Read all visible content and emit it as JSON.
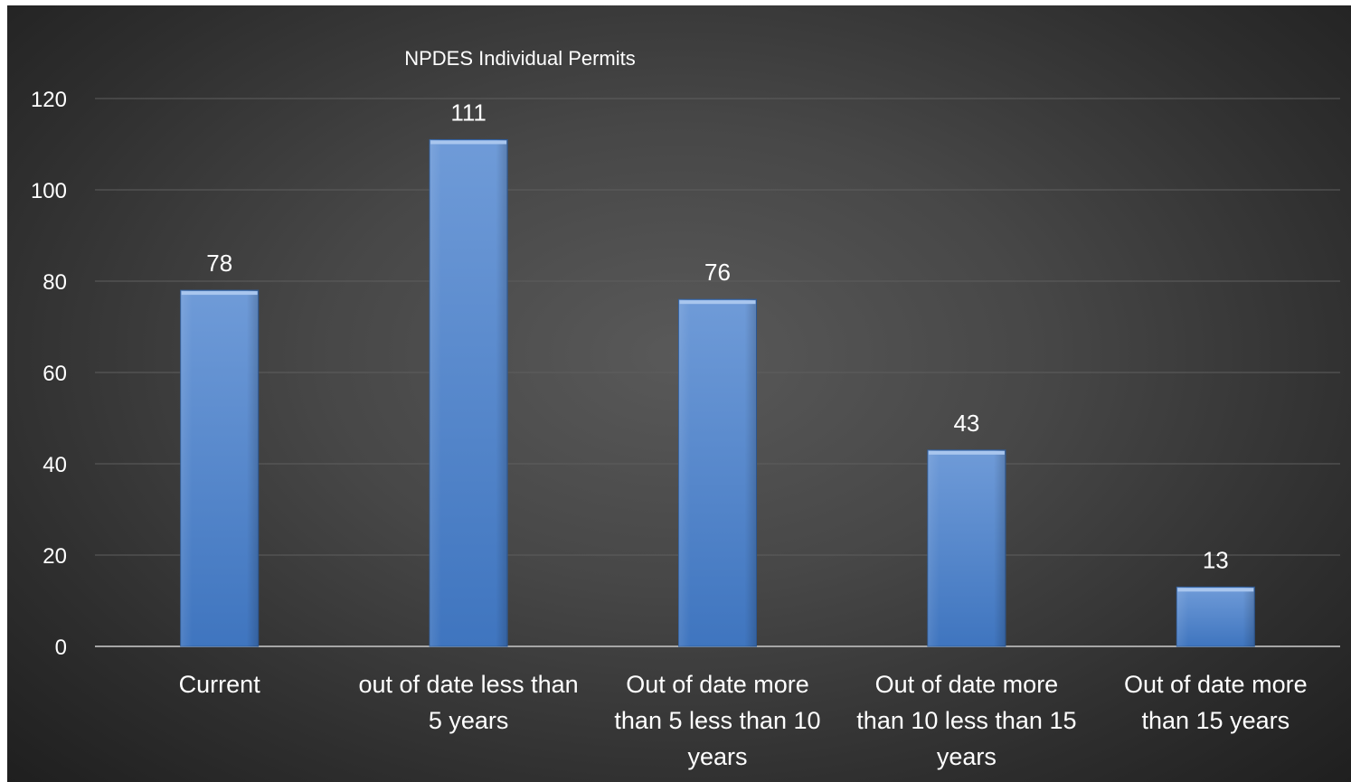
{
  "chart_data": {
    "type": "bar",
    "title": "NPDES Individual Permits",
    "xlabel": "",
    "ylabel": "",
    "categories": [
      [
        "Current"
      ],
      [
        "out of date less than",
        "5 years"
      ],
      [
        "Out of date more",
        "than 5 less than 10",
        "years"
      ],
      [
        "Out of date more",
        "than 10 less than 15",
        "years"
      ],
      [
        "Out of date more",
        "than 15 years"
      ]
    ],
    "values": [
      78,
      111,
      76,
      43,
      13
    ],
    "data_labels": [
      "78",
      "111",
      "76",
      "43",
      "13"
    ],
    "ylim": [
      0,
      120
    ],
    "yticks": [
      0,
      20,
      40,
      60,
      80,
      100,
      120
    ],
    "grid": true,
    "legend": "none",
    "colors": {
      "bar_top": "#6f9bd8",
      "bar_bottom": "#3f75bf",
      "bar_edge": "#2f5e9e",
      "bar_cap": "#a9c6ee",
      "grid": "#5e5e5e",
      "axis": "#a6a6a6",
      "text": "#ffffff",
      "background": "#3c3c3c"
    }
  }
}
